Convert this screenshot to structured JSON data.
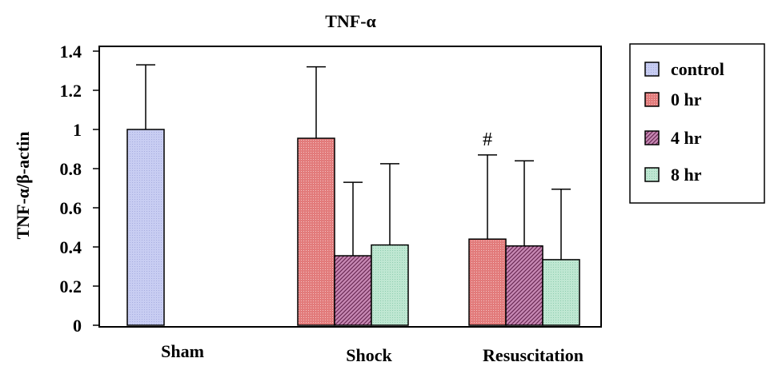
{
  "chart_data": {
    "type": "bar",
    "title": "TNF-α",
    "ylabel": "TNF-α/β-actin",
    "xlabel": "",
    "ylim": [
      0,
      1.4
    ],
    "yticks": [
      "0",
      "0.2",
      "0.4",
      "0.6",
      "0.8",
      "1",
      "1.2",
      "1.4"
    ],
    "grid": false,
    "legend_position": "right",
    "groups": [
      {
        "label": "Sham",
        "bars": [
          {
            "series": "control",
            "value": 1.0,
            "error": 0.33
          }
        ]
      },
      {
        "label": "Shock",
        "bars": [
          {
            "series": "0 hr",
            "value": 0.955,
            "error": 0.365
          },
          {
            "series": "4 hr",
            "value": 0.355,
            "error": 0.375
          },
          {
            "series": "8 hr",
            "value": 0.41,
            "error": 0.415
          }
        ]
      },
      {
        "label": "Resuscitation",
        "bars": [
          {
            "series": "0 hr",
            "value": 0.44,
            "error": 0.43,
            "annotation": "#"
          },
          {
            "series": "4 hr",
            "value": 0.405,
            "error": 0.435
          },
          {
            "series": "8 hr",
            "value": 0.335,
            "error": 0.36
          }
        ]
      }
    ],
    "series": [
      {
        "name": "control",
        "color": "#c8cdf2",
        "pattern": "dots"
      },
      {
        "name": "0 hr",
        "color": "#e27b7b",
        "pattern": "dots"
      },
      {
        "name": "4 hr",
        "color": "#c789b4",
        "pattern": "diagonal"
      },
      {
        "name": "8 hr",
        "color": "#bfe7d2",
        "pattern": "dots"
      }
    ]
  }
}
